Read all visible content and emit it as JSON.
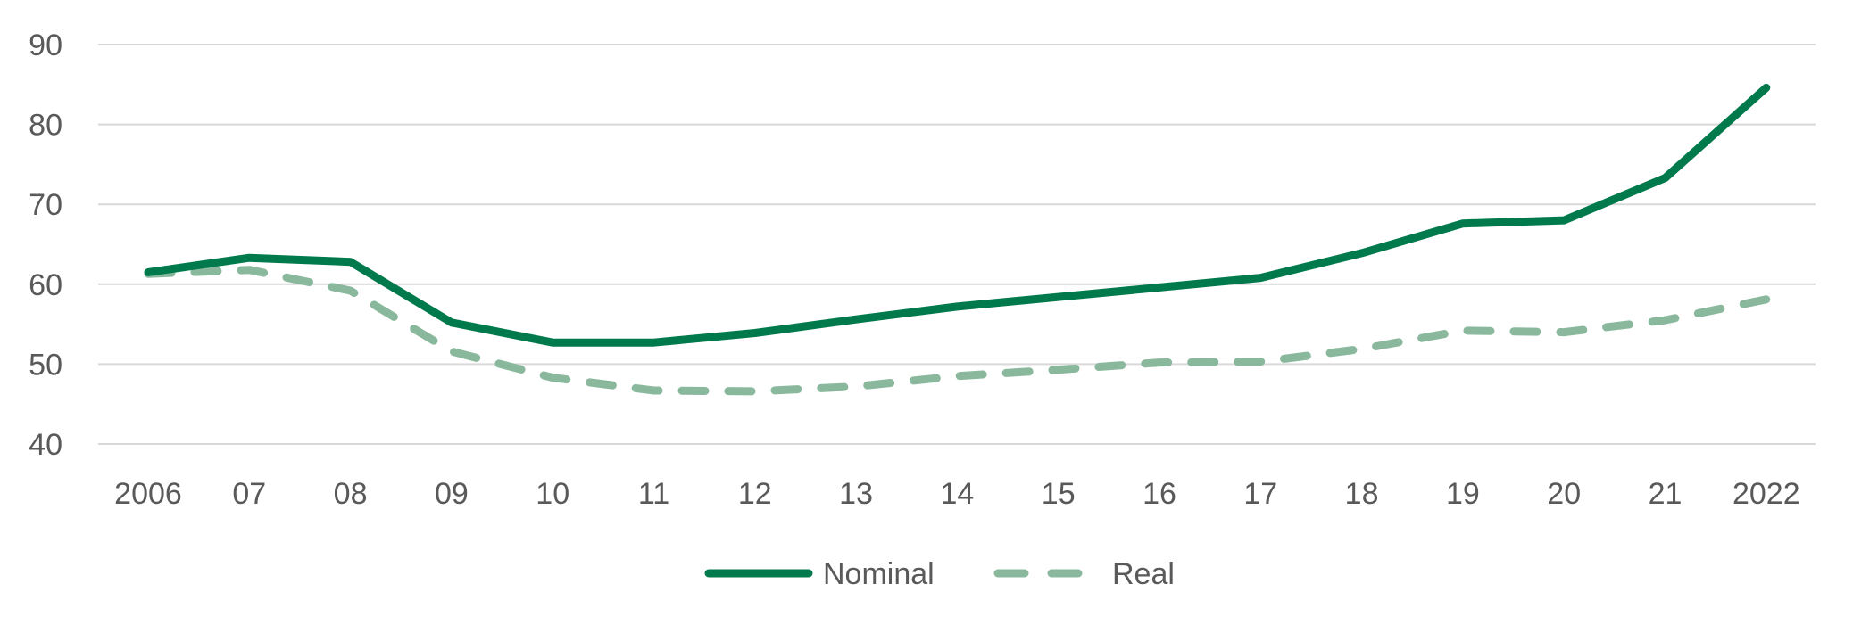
{
  "chart_data": {
    "type": "line",
    "title": "",
    "xlabel": "",
    "ylabel": "",
    "x": [
      "2006",
      "07",
      "08",
      "09",
      "10",
      "11",
      "12",
      "13",
      "14",
      "15",
      "16",
      "17",
      "18",
      "19",
      "20",
      "21",
      "2022"
    ],
    "ylim": [
      40,
      90
    ],
    "yticks": [
      40,
      50,
      60,
      70,
      80,
      90
    ],
    "grid": true,
    "legend_position": "bottom",
    "series": [
      {
        "name": "Nominal",
        "style": "solid",
        "color": "#007a4d",
        "values": [
          61.5,
          63.3,
          62.8,
          55.2,
          52.7,
          52.7,
          53.9,
          55.6,
          57.2,
          58.4,
          59.6,
          60.8,
          63.9,
          67.6,
          68.0,
          73.3,
          84.6
        ]
      },
      {
        "name": "Real",
        "style": "dashed",
        "color": "#8ab89d",
        "values": [
          61.3,
          61.8,
          59.2,
          51.6,
          48.3,
          46.7,
          46.6,
          47.2,
          48.5,
          49.3,
          50.2,
          50.3,
          51.9,
          54.2,
          54.0,
          55.5,
          58.1
        ]
      }
    ]
  }
}
